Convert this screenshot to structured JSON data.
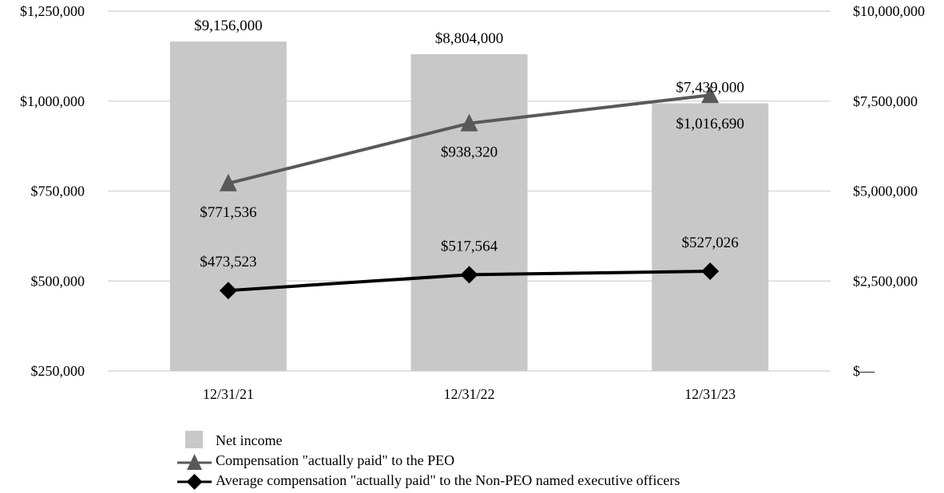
{
  "chart_data": {
    "type": "bar",
    "title": "",
    "categories": [
      "12/31/21",
      "12/31/22",
      "12/31/23"
    ],
    "series": [
      {
        "name": "Net income",
        "kind": "bar",
        "axis": "right",
        "color": "#c8c8c8",
        "values": [
          9156000,
          8804000,
          7439000
        ],
        "labels": [
          "$9,156,000",
          "$8,804,000",
          "$7,439,000"
        ]
      },
      {
        "name": "Compensation \"actually paid\" to the PEO",
        "kind": "line",
        "marker": "triangle",
        "axis": "left",
        "color": "#595959",
        "values": [
          771536,
          938320,
          1016690
        ],
        "labels": [
          "$771,536",
          "$938,320",
          "$1,016,690"
        ]
      },
      {
        "name": "Average compensation \"actually paid\" to the Non-PEO named executive officers",
        "kind": "line",
        "marker": "diamond",
        "axis": "left",
        "color": "#000000",
        "values": [
          473523,
          517564,
          527026
        ],
        "labels": [
          "$473,523",
          "$517,564",
          "$527,026"
        ]
      }
    ],
    "left_axis": {
      "ylim": [
        250000,
        1250000
      ],
      "ticks": [
        250000,
        500000,
        750000,
        1000000,
        1250000
      ],
      "tick_labels": [
        "$250,000",
        "$500,000",
        "$750,000",
        "$1,000,000",
        "$1,250,000"
      ]
    },
    "right_axis": {
      "ylim": [
        0,
        10000000
      ],
      "ticks": [
        0,
        2500000,
        5000000,
        7500000,
        10000000
      ],
      "tick_labels": [
        "$—",
        "$2,500,000",
        "$5,000,000",
        "$7,500,000",
        "$10,000,000"
      ]
    },
    "grid": true,
    "legend_position": "bottom"
  }
}
